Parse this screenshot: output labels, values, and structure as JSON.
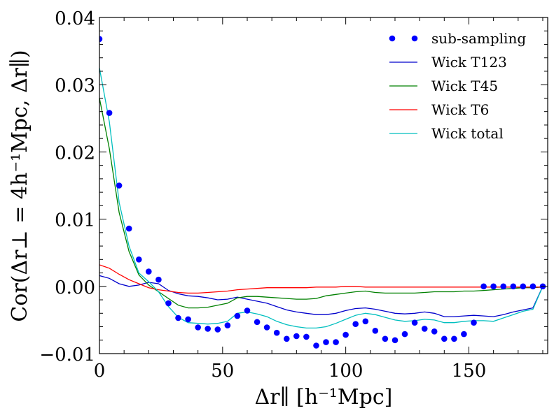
{
  "chart_data": {
    "type": "line",
    "title": "",
    "xlabel": "Δr∥ [h⁻¹Mpc]",
    "ylabel": "Cor(Δr⊥ = 4h⁻¹Mpc, Δr∥)",
    "xlim": [
      0,
      182
    ],
    "ylim": [
      -0.01,
      0.04
    ],
    "x_ticks": [
      0,
      50,
      100,
      150
    ],
    "x_tick_labels": [
      "0",
      "50",
      "100",
      "150"
    ],
    "y_ticks": [
      -0.01,
      0.0,
      0.01,
      0.02,
      0.03,
      0.04
    ],
    "y_tick_labels": [
      "−0.01",
      "0.00",
      "0.01",
      "0.02",
      "0.03",
      "0.04"
    ],
    "grid": false,
    "legend_position": "top-right",
    "series": [
      {
        "name": "sub-sampling",
        "kind": "scatter",
        "color": "#0000ff",
        "x": [
          0,
          4,
          8,
          12,
          16,
          20,
          24,
          28,
          32,
          36,
          40,
          44,
          48,
          52,
          56,
          60,
          64,
          68,
          72,
          76,
          80,
          84,
          88,
          92,
          96,
          100,
          104,
          108,
          112,
          116,
          120,
          124,
          128,
          132,
          136,
          140,
          144,
          148,
          152,
          156,
          160,
          164,
          168,
          172,
          176,
          180
        ],
        "values": [
          0.0368,
          0.0258,
          0.015,
          0.0086,
          0.004,
          0.0022,
          0.001,
          -0.0025,
          -0.0047,
          -0.0049,
          -0.0061,
          -0.0063,
          -0.0064,
          -0.0058,
          -0.0044,
          -0.0036,
          -0.0053,
          -0.0061,
          -0.0069,
          -0.0078,
          -0.0074,
          -0.0075,
          -0.0088,
          -0.0083,
          -0.0083,
          -0.0072,
          -0.0056,
          -0.0052,
          -0.0066,
          -0.0078,
          -0.008,
          -0.0071,
          -0.0054,
          -0.0063,
          -0.0067,
          -0.0078,
          -0.0078,
          -0.0071,
          -0.0054,
          0.0,
          0.0,
          0.0,
          0.0,
          0.0,
          0.0,
          0.0
        ]
      },
      {
        "name": "Wick T123",
        "kind": "line",
        "color": "#0000cc",
        "x": [
          0,
          4,
          8,
          12,
          16,
          20,
          24,
          28,
          32,
          36,
          40,
          44,
          48,
          52,
          56,
          60,
          64,
          68,
          72,
          76,
          80,
          84,
          88,
          92,
          96,
          100,
          104,
          108,
          112,
          116,
          120,
          124,
          128,
          132,
          136,
          140,
          144,
          148,
          152,
          156,
          160,
          164,
          168,
          172,
          176,
          180
        ],
        "values": [
          0.0016,
          0.0012,
          0.0004,
          0.0,
          0.0002,
          0.0006,
          0.0004,
          -0.0006,
          -0.0011,
          -0.0014,
          -0.0015,
          -0.0017,
          -0.002,
          -0.0019,
          -0.0016,
          -0.0019,
          -0.0022,
          -0.0025,
          -0.003,
          -0.0035,
          -0.0038,
          -0.004,
          -0.0042,
          -0.0042,
          -0.004,
          -0.0036,
          -0.0033,
          -0.0032,
          -0.0034,
          -0.0037,
          -0.004,
          -0.0041,
          -0.004,
          -0.0038,
          -0.004,
          -0.0045,
          -0.0045,
          -0.0044,
          -0.0043,
          -0.0044,
          -0.0045,
          -0.0042,
          -0.0038,
          -0.0035,
          -0.0032,
          0.0
        ]
      },
      {
        "name": "Wick T45",
        "kind": "line",
        "color": "#008000",
        "x": [
          0,
          4,
          8,
          12,
          16,
          20,
          24,
          28,
          32,
          36,
          40,
          44,
          48,
          52,
          56,
          60,
          64,
          68,
          72,
          76,
          80,
          84,
          88,
          92,
          96,
          100,
          104,
          108,
          112,
          116,
          120,
          124,
          128,
          132,
          136,
          140,
          144,
          148,
          152,
          156,
          160,
          164,
          168,
          172,
          176,
          180
        ],
        "values": [
          0.028,
          0.0205,
          0.011,
          0.0052,
          0.0017,
          0.0002,
          -0.0008,
          -0.0018,
          -0.0028,
          -0.0032,
          -0.0032,
          -0.0031,
          -0.0028,
          -0.0025,
          -0.0017,
          -0.0015,
          -0.0015,
          -0.0016,
          -0.0017,
          -0.0018,
          -0.0019,
          -0.0019,
          -0.0018,
          -0.0014,
          -0.0012,
          -0.001,
          -0.0008,
          -0.0007,
          -0.0009,
          -0.001,
          -0.001,
          -0.001,
          -0.001,
          -0.0009,
          -0.0008,
          -0.0008,
          -0.0008,
          -0.0007,
          -0.0007,
          -0.0006,
          -0.0005,
          -0.0004,
          -0.0003,
          -0.0002,
          -0.0002,
          -0.0001
        ]
      },
      {
        "name": "Wick T6",
        "kind": "line",
        "color": "#ff0000",
        "x": [
          0,
          4,
          8,
          12,
          16,
          20,
          24,
          28,
          32,
          36,
          40,
          44,
          48,
          52,
          56,
          60,
          64,
          68,
          72,
          76,
          80,
          84,
          88,
          92,
          96,
          100,
          104,
          108,
          112,
          116,
          120,
          124,
          128,
          132,
          136,
          140,
          144,
          148,
          152,
          156,
          160,
          164,
          168,
          172,
          176,
          180
        ],
        "values": [
          0.0032,
          0.0027,
          0.0018,
          0.001,
          0.0004,
          -0.0002,
          -0.0005,
          -0.0007,
          -0.0009,
          -0.001,
          -0.001,
          -0.0009,
          -0.0008,
          -0.0007,
          -0.0005,
          -0.0004,
          -0.0003,
          -0.0002,
          -0.0002,
          -0.0002,
          -0.0002,
          -0.0002,
          -0.0001,
          -0.0001,
          -0.0001,
          0.0,
          0.0,
          -0.0001,
          -0.0001,
          -0.0001,
          -0.0001,
          -0.0001,
          -0.0001,
          -0.0001,
          -0.0001,
          -0.0001,
          -0.0001,
          -0.0001,
          -0.0001,
          -0.0001,
          -0.0001,
          -0.0001,
          -0.0001,
          -0.0001,
          -0.0001,
          -0.0001
        ]
      },
      {
        "name": "Wick total",
        "kind": "line",
        "color": "#00bfbf",
        "x": [
          0,
          4,
          8,
          12,
          16,
          20,
          24,
          28,
          32,
          36,
          40,
          44,
          48,
          52,
          56,
          60,
          64,
          68,
          72,
          76,
          80,
          84,
          88,
          92,
          96,
          100,
          104,
          108,
          112,
          116,
          120,
          124,
          128,
          132,
          136,
          140,
          144,
          148,
          152,
          156,
          160,
          164,
          168,
          172,
          176,
          180
        ],
        "values": [
          0.0325,
          0.0245,
          0.0125,
          0.006,
          0.002,
          0.0007,
          -0.0008,
          -0.003,
          -0.0046,
          -0.0054,
          -0.0055,
          -0.0056,
          -0.0055,
          -0.0052,
          -0.004,
          -0.0038,
          -0.0041,
          -0.0045,
          -0.0052,
          -0.0057,
          -0.006,
          -0.0062,
          -0.0062,
          -0.006,
          -0.0055,
          -0.0049,
          -0.0043,
          -0.004,
          -0.0042,
          -0.0046,
          -0.005,
          -0.0052,
          -0.0051,
          -0.0049,
          -0.005,
          -0.0054,
          -0.0054,
          -0.0052,
          -0.0051,
          -0.0051,
          -0.0052,
          -0.0047,
          -0.0042,
          -0.0037,
          -0.0034,
          0.0
        ]
      }
    ]
  }
}
